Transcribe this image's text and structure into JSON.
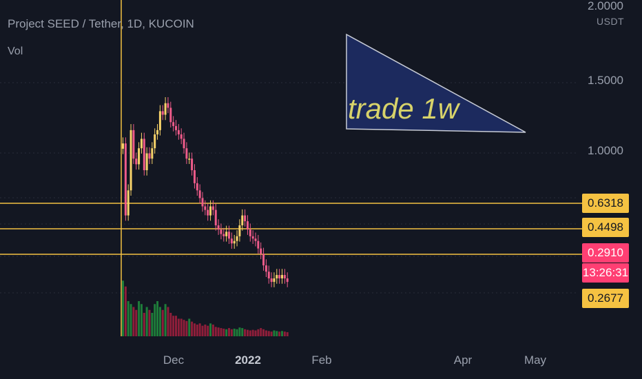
{
  "header": {
    "title": "Project SEED / Tether, 1D, KUCOIN",
    "indicator": "Vol"
  },
  "price_axis": {
    "unit": "USDT",
    "top_partial_label": "2.0000",
    "tick_labels": [
      "1.5000",
      "1.0000"
    ]
  },
  "time_axis": {
    "labels": [
      "Dec",
      "2022",
      "Feb",
      "Apr",
      "May"
    ]
  },
  "price_tags": [
    {
      "value": "0.6318",
      "style": "yellow"
    },
    {
      "value": "0.4498",
      "style": "yellow"
    },
    {
      "value": "0.2910",
      "style": "red"
    },
    {
      "value": "13:26:31",
      "style": "red"
    },
    {
      "value": "0.2677",
      "style": "yellow"
    }
  ],
  "annotation": {
    "text": "trade 1w",
    "fill_color": "#1c2a5e",
    "text_color": "#d8d36a"
  },
  "colors": {
    "background": "#131722",
    "up_candle": "#f7d36a",
    "down_candle": "#ef5b8a",
    "horizontal_line": "#f5c242",
    "volume_up": "#1e7d3a",
    "volume_down": "#8e1e3a"
  },
  "chart_data": {
    "type": "candlestick",
    "title": "Project SEED / Tether, 1D, KUCOIN",
    "ylabel": "USDT",
    "ylim": [
      0.2,
      2.0
    ],
    "horizontal_lines": [
      0.6318,
      0.4498,
      0.2677
    ],
    "last_price": 0.291,
    "close_approx": [
      1.1,
      0.55,
      0.7,
      1.25,
      0.95,
      0.9,
      1.05,
      1.15,
      0.85,
      1.0,
      0.95,
      1.05,
      1.2,
      1.25,
      1.5,
      1.45,
      1.62,
      1.55,
      1.35,
      1.3,
      1.25,
      1.2,
      1.15,
      1.05,
      0.95,
      0.95,
      0.85,
      0.75,
      0.7,
      0.65,
      0.6,
      0.58,
      0.55,
      0.6,
      0.58,
      0.5,
      0.48,
      0.46,
      0.45,
      0.47,
      0.44,
      0.42,
      0.43,
      0.45,
      0.5,
      0.55,
      0.52,
      0.48,
      0.45,
      0.44,
      0.43,
      0.4,
      0.38,
      0.34,
      0.32,
      0.3,
      0.29,
      0.3,
      0.31,
      0.3,
      0.31,
      0.3,
      0.29
    ],
    "volume_relative": [
      0.95,
      0.85,
      0.6,
      0.55,
      0.5,
      0.45,
      0.6,
      0.55,
      0.4,
      0.5,
      0.45,
      0.4,
      0.55,
      0.6,
      0.5,
      0.45,
      0.55,
      0.5,
      0.4,
      0.35,
      0.35,
      0.3,
      0.3,
      0.28,
      0.26,
      0.3,
      0.25,
      0.22,
      0.2,
      0.22,
      0.18,
      0.2,
      0.18,
      0.22,
      0.2,
      0.16,
      0.15,
      0.14,
      0.13,
      0.12,
      0.14,
      0.12,
      0.13,
      0.12,
      0.15,
      0.14,
      0.12,
      0.11,
      0.1,
      0.11,
      0.1,
      0.12,
      0.14,
      0.12,
      0.1,
      0.09,
      0.08,
      0.1,
      0.09,
      0.08,
      0.09,
      0.08,
      0.07
    ]
  }
}
